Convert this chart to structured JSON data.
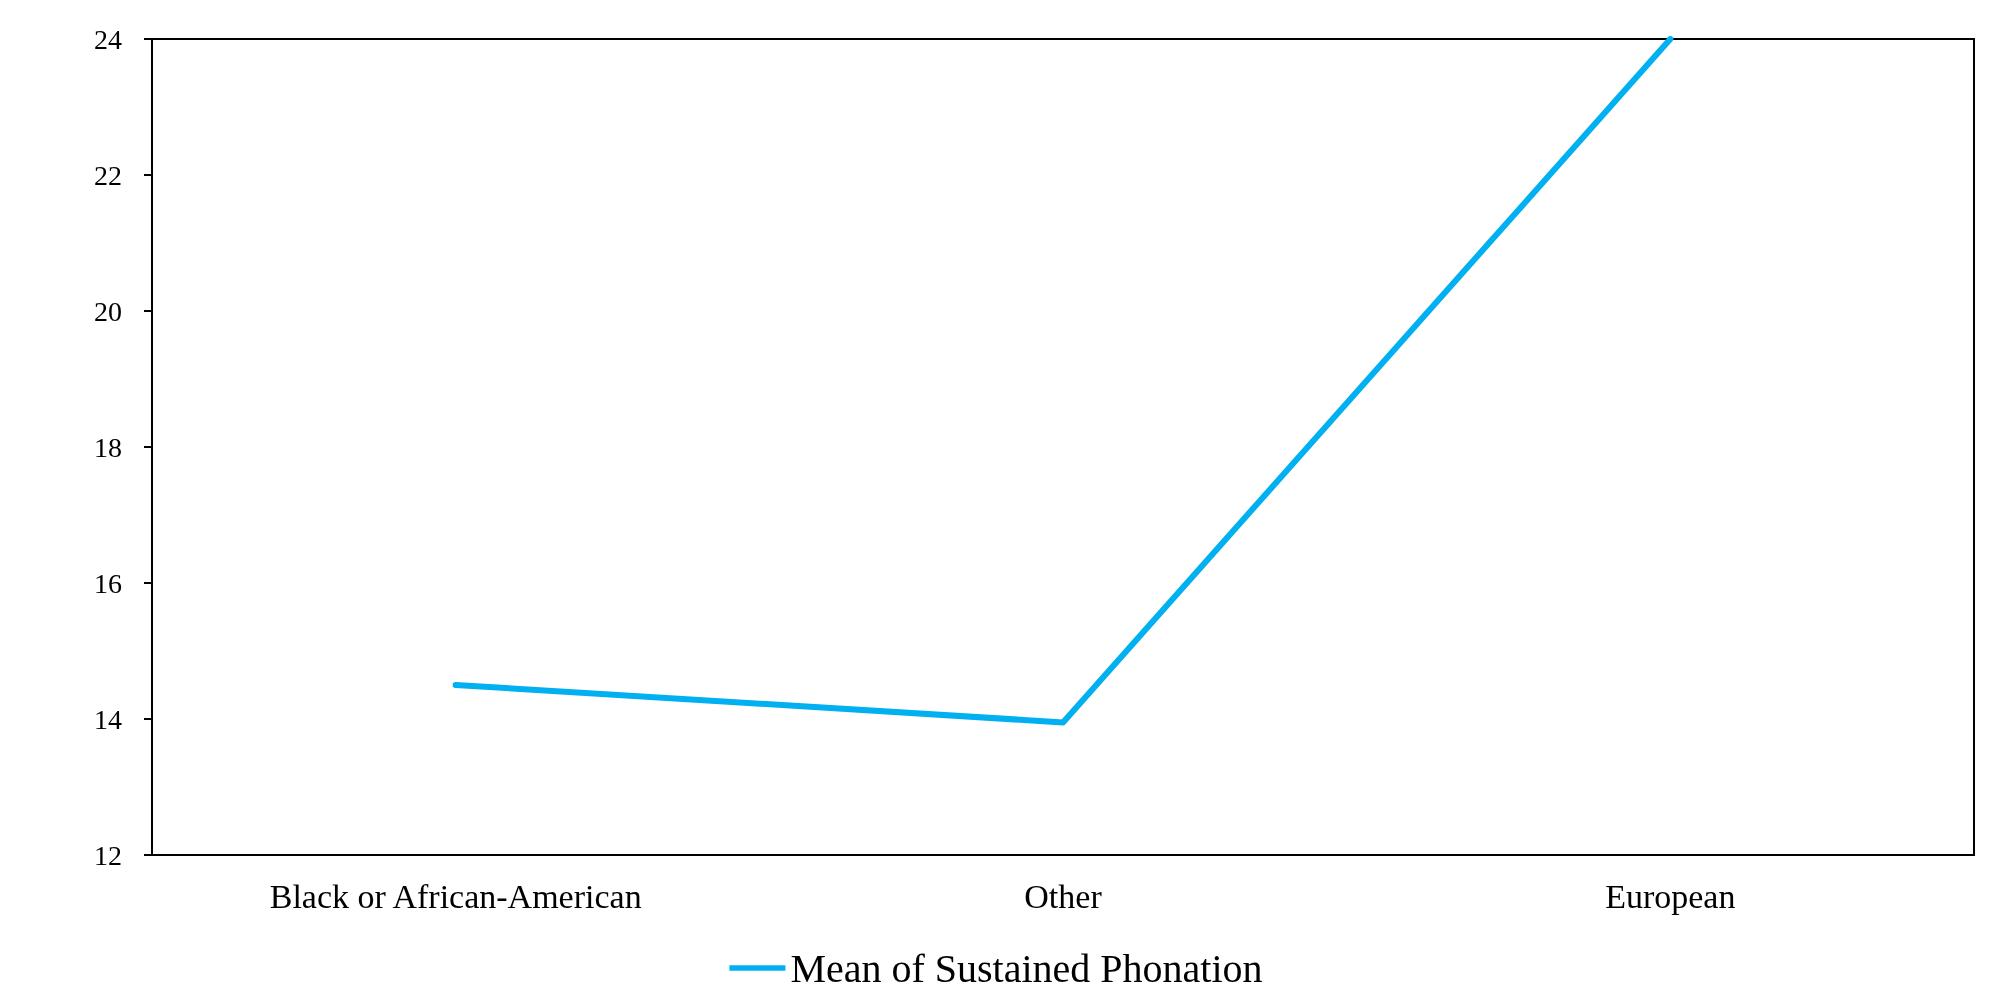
{
  "chart_data": {
    "type": "line",
    "categories": [
      "Black or African-American",
      "Other",
      "European"
    ],
    "series": [
      {
        "name": "Mean of Sustained Phonation",
        "color": "#00b0f0",
        "values": [
          14.5,
          13.95,
          24
        ]
      }
    ],
    "ylim": [
      12,
      24
    ],
    "yticks": [
      12,
      14,
      16,
      18,
      20,
      22,
      24
    ],
    "grid": false,
    "legend": "bottom",
    "marker": "none",
    "line_style": "solid"
  }
}
